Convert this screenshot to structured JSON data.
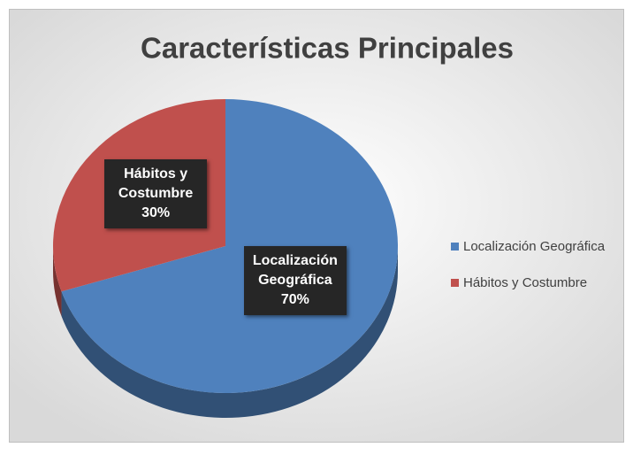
{
  "chart_data": {
    "type": "pie",
    "title": "Características Principales",
    "categories": [
      "Localización Geográfica",
      "Hábitos y Costumbre"
    ],
    "values": [
      70,
      30
    ],
    "value_labels": [
      "70%",
      "30%"
    ],
    "colors": [
      "#4f81bd",
      "#c0504d"
    ],
    "legend": "right",
    "three_d": true
  }
}
